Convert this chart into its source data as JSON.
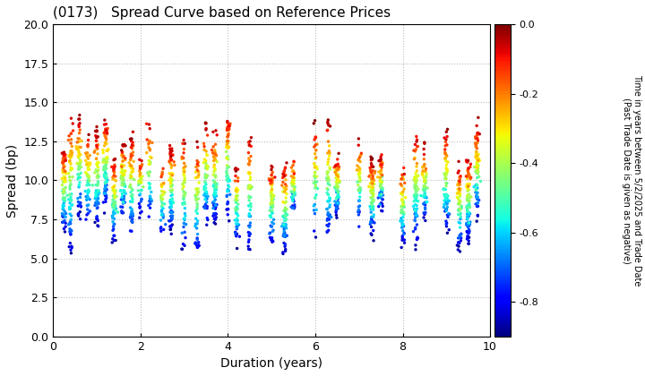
{
  "title": "(0173)   Spread Curve based on Reference Prices",
  "xlabel": "Duration (years)",
  "ylabel": "Spread (bp)",
  "colorbar_label": "Time in years between 5/2/2025 and Trade Date\n(Past Trade Date is given as negative)",
  "colorbar_ticks": [
    0.0,
    -0.2,
    -0.4,
    -0.6,
    -0.8
  ],
  "xlim": [
    0,
    10
  ],
  "ylim": [
    0.0,
    20.0
  ],
  "yticks": [
    0.0,
    2.5,
    5.0,
    7.5,
    10.0,
    12.5,
    15.0,
    17.5,
    20.0
  ],
  "xticks": [
    0,
    2,
    4,
    6,
    8,
    10
  ],
  "color_vmin": -0.9,
  "color_vmax": 0.0,
  "marker_size": 6,
  "background_color": "#ffffff",
  "grid_color": "#bbbbbb",
  "figwidth": 7.2,
  "figheight": 4.2,
  "dpi": 100
}
